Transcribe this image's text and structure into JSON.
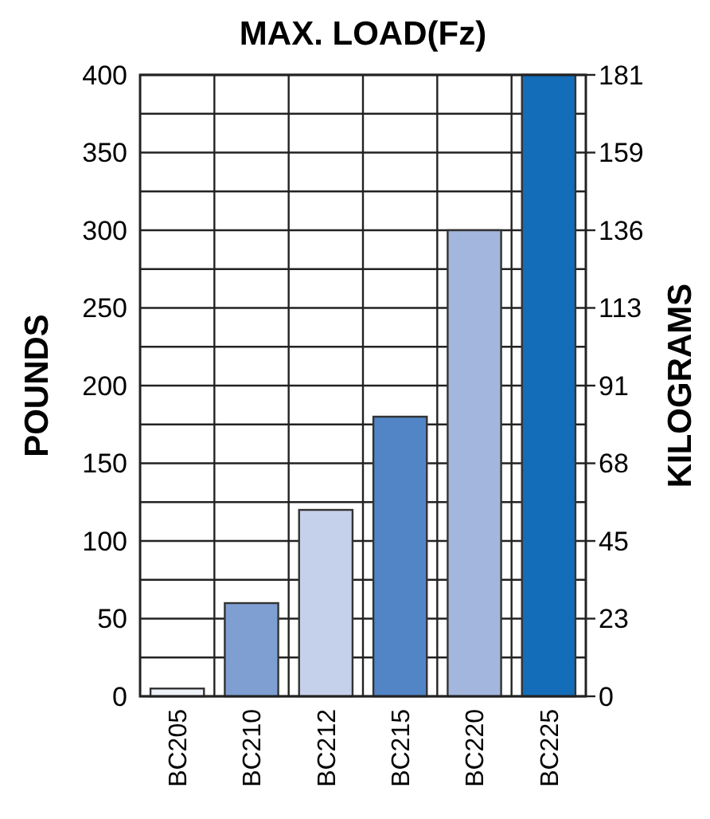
{
  "chart_data": {
    "type": "bar",
    "title": "MAX. LOAD(Fz)",
    "ylabel": "POUNDS",
    "y2label": "KILOGRAMS",
    "categories": [
      "BC205",
      "BC210",
      "BC212",
      "BC215",
      "BC220",
      "BC225"
    ],
    "values": [
      5,
      60,
      120,
      180,
      300,
      400
    ],
    "colors": [
      "#eef1f8",
      "#7f9fd3",
      "#c5d1ea",
      "#5185c6",
      "#a3b7de",
      "#136db8"
    ],
    "ylim": [
      0,
      400
    ],
    "yticks": [
      0,
      {
        "value": 25,
        "label": null
      },
      50,
      {
        "value": 75,
        "label": null
      },
      100,
      {
        "value": 125,
        "label": null
      },
      150,
      {
        "value": 175,
        "label": null
      },
      200,
      {
        "value": 225,
        "label": null
      },
      250,
      {
        "value": 275,
        "label": null
      },
      300,
      {
        "value": 325,
        "label": null
      },
      350,
      {
        "value": 375,
        "label": null
      },
      400
    ],
    "y2lim": [
      0,
      181.44
    ],
    "y2ticks": [
      0,
      {
        "value": 22.68,
        "label": "23"
      },
      {
        "value": 45.36,
        "label": "45"
      },
      {
        "value": 68.04,
        "label": "68"
      },
      {
        "value": 90.72,
        "label": "91"
      },
      {
        "value": 113.4,
        "label": "113"
      },
      {
        "value": 136.08,
        "label": "136"
      },
      {
        "value": 158.76,
        "label": "159"
      },
      {
        "value": 181.44,
        "label": "181"
      }
    ],
    "grid": true
  }
}
